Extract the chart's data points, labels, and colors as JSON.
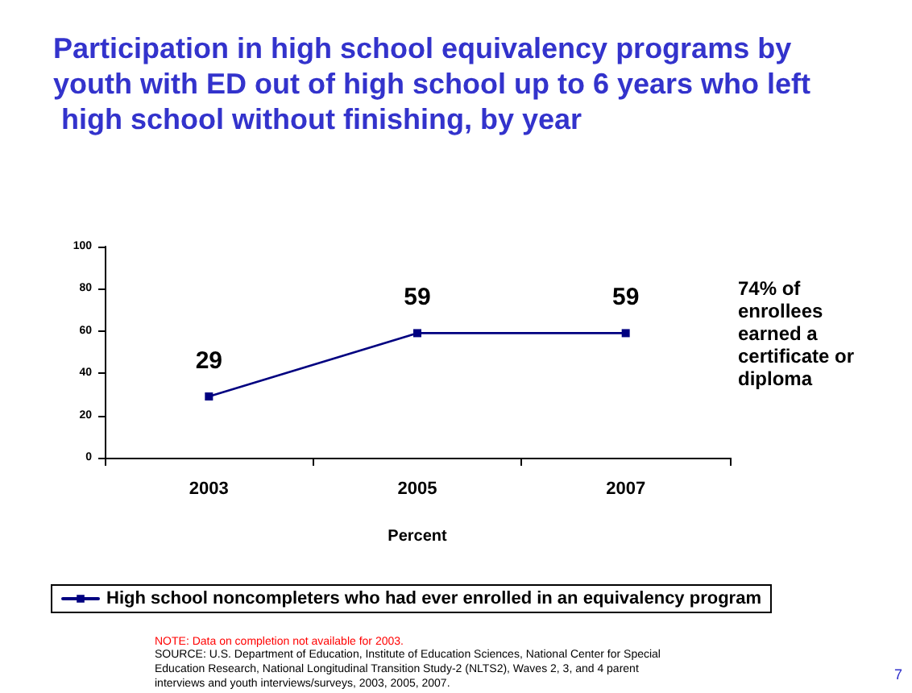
{
  "chart_data": {
    "type": "line",
    "title": "Participation in high school equivalency programs by youth with ED out of high school up to 6 years who left high school without finishing, by year",
    "xlabel": "Percent",
    "categories": [
      "2003",
      "2005",
      "2007"
    ],
    "series": [
      {
        "name": "High school noncompleters who had ever enrolled in an equivalency program",
        "color": "#000080",
        "values": [
          29,
          59,
          59
        ]
      }
    ],
    "ylim": [
      0,
      100
    ],
    "yticks": [
      0,
      20,
      40,
      60,
      80,
      100
    ],
    "data_labels": true,
    "marker": "square",
    "line_style": "solid",
    "grid": false,
    "legend": "bottom",
    "annotations": [
      "74% of enrollees earned a certificate or diploma",
      "NOTE: Data on completion not available for 2003.",
      "SOURCE: U.S. Department of Education, Institute of Education Sciences, National Center for Special Education Research, National Longitudinal Transition Study-2 (NLTS2), Waves 2, 3, and 4 parent interviews and youth interviews/surveys, 2003, 2005, 2007.",
      "7"
    ]
  }
}
